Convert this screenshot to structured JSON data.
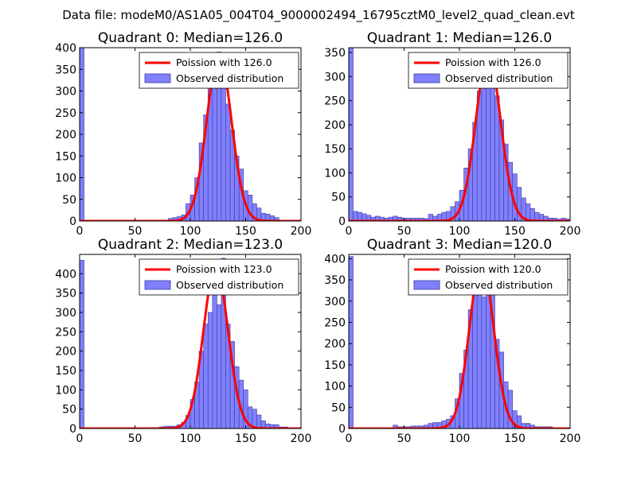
{
  "figure": {
    "suptitle": "Data file: modeM0/AS1A05_004T04_9000002494_16795cztM0_level2_quad_clean.evt"
  },
  "colors": {
    "bar_fill": "#8080ff",
    "bar_edge": "#3a3a9a",
    "poisson_line": "#ff0000",
    "axes": "#000000"
  },
  "chart_data": [
    {
      "type": "bar",
      "title": "Quadrant 0: Median=126.0",
      "xlim": [
        0,
        200
      ],
      "ylim": [
        0,
        400
      ],
      "xticks": [
        "0",
        "50",
        "100",
        "150",
        "200"
      ],
      "yticks": [
        "0",
        "50",
        "100",
        "150",
        "200",
        "250",
        "300",
        "350",
        "400"
      ],
      "legend": {
        "position": "top-right",
        "entries": [
          "Poission with 126.0",
          "Observed distribution"
        ]
      },
      "bin_width": 4,
      "bins": [
        [
          0,
          400
        ],
        [
          80,
          6
        ],
        [
          84,
          8
        ],
        [
          88,
          10
        ],
        [
          92,
          14
        ],
        [
          96,
          40
        ],
        [
          100,
          60
        ],
        [
          104,
          100
        ],
        [
          108,
          180
        ],
        [
          112,
          245
        ],
        [
          116,
          320
        ],
        [
          120,
          350
        ],
        [
          124,
          390
        ],
        [
          128,
          330
        ],
        [
          132,
          270
        ],
        [
          136,
          210
        ],
        [
          140,
          150
        ],
        [
          144,
          120
        ],
        [
          148,
          70
        ],
        [
          152,
          60
        ],
        [
          156,
          40
        ],
        [
          160,
          30
        ],
        [
          164,
          18
        ],
        [
          168,
          16
        ],
        [
          172,
          12
        ],
        [
          176,
          8
        ]
      ],
      "poisson": {
        "mean": 126.0,
        "peak": 383
      }
    },
    {
      "type": "bar",
      "title": "Quadrant 1: Median=126.0",
      "xlim": [
        0,
        200
      ],
      "ylim": [
        0,
        360
      ],
      "xticks": [
        "0",
        "50",
        "100",
        "150",
        "200"
      ],
      "yticks": [
        "0",
        "50",
        "100",
        "150",
        "200",
        "250",
        "300",
        "350"
      ],
      "legend": {
        "position": "top-right",
        "entries": [
          "Poission with 126.0",
          "Observed distribution"
        ]
      },
      "bin_width": 4,
      "bins": [
        [
          0,
          362
        ],
        [
          4,
          20
        ],
        [
          8,
          18
        ],
        [
          12,
          15
        ],
        [
          16,
          12
        ],
        [
          20,
          8
        ],
        [
          24,
          10
        ],
        [
          28,
          8
        ],
        [
          32,
          6
        ],
        [
          36,
          8
        ],
        [
          40,
          10
        ],
        [
          44,
          8
        ],
        [
          48,
          6
        ],
        [
          52,
          6
        ],
        [
          56,
          6
        ],
        [
          60,
          6
        ],
        [
          64,
          6
        ],
        [
          68,
          5
        ],
        [
          72,
          14
        ],
        [
          76,
          10
        ],
        [
          80,
          14
        ],
        [
          84,
          18
        ],
        [
          88,
          20
        ],
        [
          92,
          30
        ],
        [
          96,
          40
        ],
        [
          100,
          64
        ],
        [
          104,
          110
        ],
        [
          108,
          150
        ],
        [
          112,
          205
        ],
        [
          116,
          270
        ],
        [
          120,
          325
        ],
        [
          124,
          340
        ],
        [
          128,
          295
        ],
        [
          132,
          260
        ],
        [
          136,
          210
        ],
        [
          140,
          160
        ],
        [
          144,
          122
        ],
        [
          148,
          98
        ],
        [
          152,
          70
        ],
        [
          156,
          48
        ],
        [
          160,
          36
        ],
        [
          164,
          26
        ],
        [
          168,
          18
        ],
        [
          172,
          14
        ],
        [
          176,
          10
        ],
        [
          180,
          6
        ],
        [
          184,
          6
        ],
        [
          188,
          4
        ],
        [
          192,
          6
        ],
        [
          196,
          4
        ]
      ],
      "poisson": {
        "mean": 126.0,
        "peak": 345
      }
    },
    {
      "type": "bar",
      "title": "Quadrant 2: Median=123.0",
      "xlim": [
        0,
        200
      ],
      "ylim": [
        0,
        450
      ],
      "xticks": [
        "0",
        "50",
        "100",
        "150",
        "200"
      ],
      "yticks": [
        "0",
        "50",
        "100",
        "150",
        "200",
        "250",
        "300",
        "350",
        "400"
      ],
      "legend": {
        "position": "top-right",
        "entries": [
          "Poission with 123.0",
          "Observed distribution"
        ]
      },
      "bin_width": 4,
      "bins": [
        [
          0,
          435
        ],
        [
          72,
          4
        ],
        [
          76,
          6
        ],
        [
          80,
          6
        ],
        [
          84,
          6
        ],
        [
          88,
          10
        ],
        [
          92,
          16
        ],
        [
          96,
          34
        ],
        [
          100,
          75
        ],
        [
          104,
          120
        ],
        [
          108,
          200
        ],
        [
          112,
          270
        ],
        [
          116,
          300
        ],
        [
          120,
          410
        ],
        [
          124,
          320
        ],
        [
          128,
          440
        ],
        [
          132,
          270
        ],
        [
          136,
          225
        ],
        [
          140,
          160
        ],
        [
          144,
          125
        ],
        [
          148,
          100
        ],
        [
          152,
          56
        ],
        [
          156,
          50
        ],
        [
          160,
          35
        ],
        [
          164,
          20
        ],
        [
          168,
          12
        ],
        [
          172,
          10
        ],
        [
          176,
          10
        ],
        [
          180,
          4
        ],
        [
          184,
          4
        ]
      ],
      "poisson": {
        "mean": 123.0,
        "peak": 418
      }
    },
    {
      "type": "bar",
      "title": "Quadrant 3: Median=120.0",
      "xlim": [
        0,
        200
      ],
      "ylim": [
        0,
        410
      ],
      "xticks": [
        "0",
        "50",
        "100",
        "150",
        "200"
      ],
      "yticks": [
        "0",
        "50",
        "100",
        "150",
        "200",
        "250",
        "300",
        "350",
        "400"
      ],
      "legend": {
        "position": "top-right",
        "entries": [
          "Poission with 120.0",
          "Observed distribution"
        ]
      },
      "bin_width": 4,
      "bins": [
        [
          0,
          405
        ],
        [
          40,
          8
        ],
        [
          44,
          4
        ],
        [
          48,
          4
        ],
        [
          52,
          4
        ],
        [
          56,
          6
        ],
        [
          60,
          6
        ],
        [
          64,
          6
        ],
        [
          68,
          8
        ],
        [
          72,
          12
        ],
        [
          76,
          14
        ],
        [
          80,
          14
        ],
        [
          84,
          18
        ],
        [
          88,
          22
        ],
        [
          92,
          30
        ],
        [
          96,
          70
        ],
        [
          100,
          130
        ],
        [
          104,
          185
        ],
        [
          108,
          280
        ],
        [
          112,
          330
        ],
        [
          116,
          390
        ],
        [
          120,
          310
        ],
        [
          124,
          370
        ],
        [
          128,
          320
        ],
        [
          132,
          210
        ],
        [
          136,
          180
        ],
        [
          140,
          110
        ],
        [
          144,
          90
        ],
        [
          148,
          42
        ],
        [
          152,
          30
        ],
        [
          156,
          12
        ],
        [
          160,
          12
        ],
        [
          164,
          8
        ],
        [
          168,
          4
        ],
        [
          172,
          4
        ],
        [
          176,
          4
        ],
        [
          180,
          4
        ]
      ],
      "poisson": {
        "mean": 120.0,
        "peak": 392
      }
    }
  ]
}
